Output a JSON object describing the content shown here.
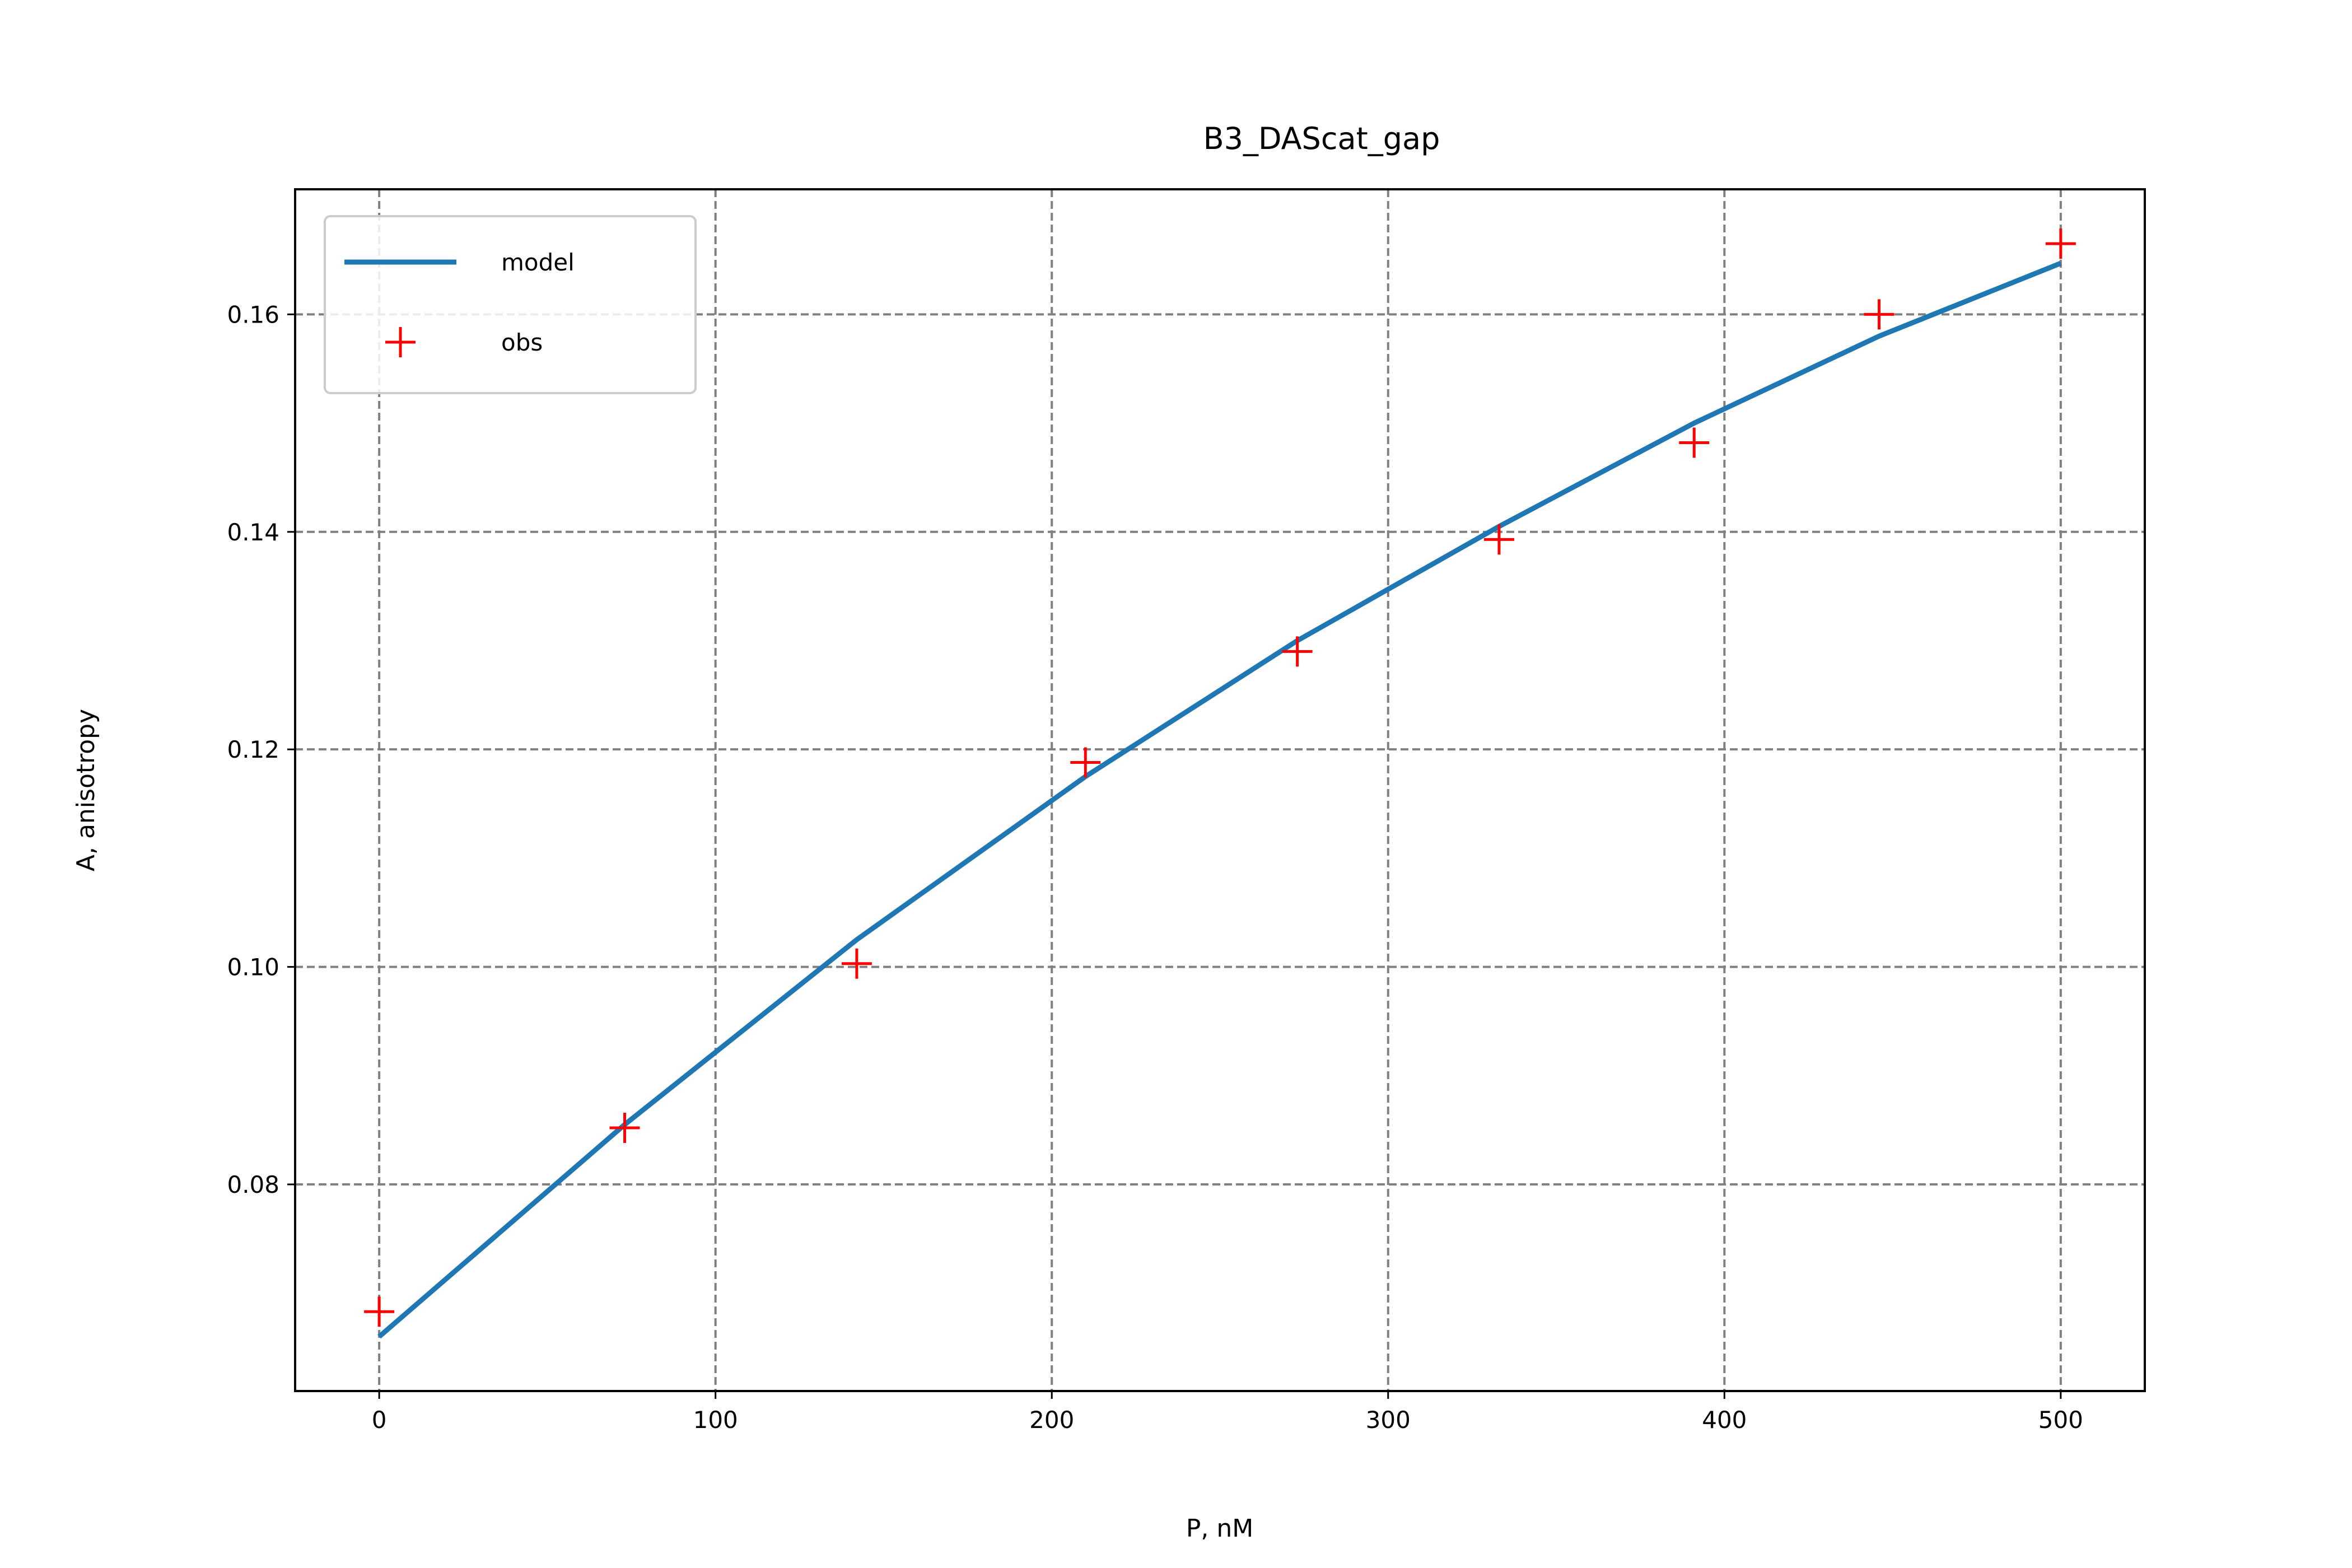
{
  "chart_data": {
    "type": "line",
    "title": "B3_DAScat_gap",
    "xlabel": "P, nM",
    "ylabel": "A, anisotropy",
    "xlim": [
      -25,
      525
    ],
    "ylim": [
      0.061,
      0.1715
    ],
    "xticks": [
      0,
      100,
      200,
      300,
      400,
      500
    ],
    "xtick_labels": [
      "0",
      "100",
      "200",
      "300",
      "400",
      "500"
    ],
    "yticks": [
      0.08,
      0.1,
      0.12,
      0.14,
      0.16
    ],
    "ytick_labels": [
      "0.08",
      "0.10",
      "0.12",
      "0.14",
      "0.16"
    ],
    "grid": true,
    "legend_position": "top-left",
    "series": [
      {
        "name": "model",
        "kind": "line",
        "color": "#1f77b4",
        "x": [
          0,
          73,
          142,
          210,
          273,
          333,
          391,
          446,
          500
        ],
        "y": [
          0.066,
          0.0855,
          0.1025,
          0.1175,
          0.13,
          0.1405,
          0.15,
          0.158,
          0.1647
        ]
      },
      {
        "name": "obs",
        "kind": "marker",
        "marker": "+",
        "color": "#ff0000",
        "x": [
          0,
          73,
          142,
          210,
          273,
          333,
          391,
          446,
          500
        ],
        "y": [
          0.0683,
          0.0852,
          0.1003,
          0.1188,
          0.129,
          0.1393,
          0.1482,
          0.16,
          0.1665
        ]
      }
    ]
  }
}
